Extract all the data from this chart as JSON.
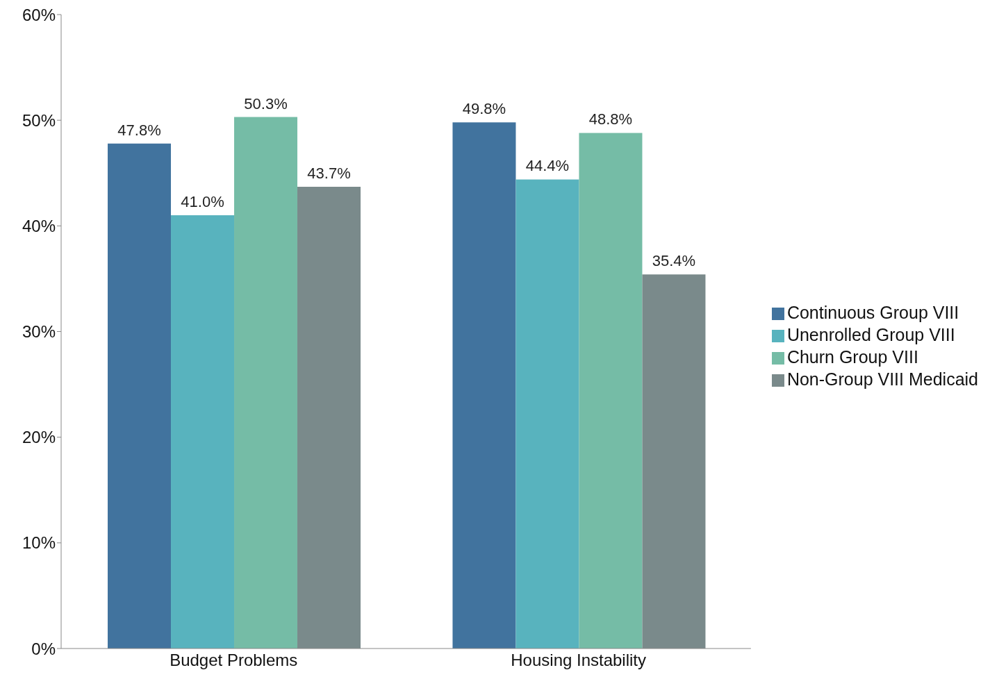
{
  "chart_data": {
    "type": "bar",
    "categories": [
      "Budget Problems",
      "Housing Instability"
    ],
    "series": [
      {
        "name": "Continuous Group VIII",
        "color": "#41739e",
        "values": [
          47.8,
          49.8
        ],
        "value_labels": [
          "47.8%",
          "49.8%"
        ]
      },
      {
        "name": "Unenrolled Group VIII",
        "color": "#58b3be",
        "values": [
          41.0,
          44.4
        ],
        "value_labels": [
          "41.0%",
          "44.4%"
        ]
      },
      {
        "name": "Churn Group VIII",
        "color": "#75bca6",
        "values": [
          50.3,
          48.8
        ],
        "value_labels": [
          "50.3%",
          "48.8%"
        ]
      },
      {
        "name": "Non-Group VIII Medicaid",
        "color": "#7a8a8b",
        "values": [
          43.7,
          35.4
        ],
        "value_labels": [
          "43.7%",
          "35.4%"
        ]
      }
    ],
    "ylim": [
      0,
      60
    ],
    "yticks": [
      {
        "value": 0,
        "label": "0%"
      },
      {
        "value": 10,
        "label": "10%"
      },
      {
        "value": 20,
        "label": "20%"
      },
      {
        "value": 30,
        "label": "30%"
      },
      {
        "value": 40,
        "label": "40%"
      },
      {
        "value": 50,
        "label": "50%"
      },
      {
        "value": 60,
        "label": "60%"
      }
    ],
    "grid": false,
    "legend": "right"
  }
}
